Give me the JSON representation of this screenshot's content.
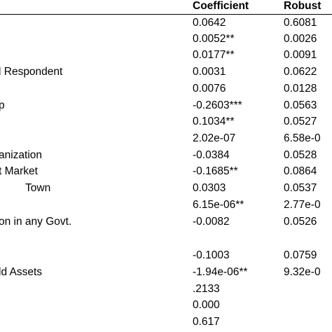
{
  "table": {
    "header": [
      "Coefficient",
      "Robust"
    ],
    "rows": [
      {
        "coefficient": "0.0642",
        "robust": "0.6081"
      },
      {
        "coefficient": "0.0052**",
        "robust": "0.0026"
      },
      {
        "coefficient": "0.0177**",
        "robust": "0.0091"
      },
      {
        "label": "l Respondent",
        "coefficient": "0.0031",
        "robust": "0.0622"
      },
      {
        "coefficient": "0.0076",
        "robust": "0.0128"
      },
      {
        "label": "p",
        "coefficient": "-0.2603***",
        "robust": "0.0563"
      },
      {
        "coefficient": "0.1034**",
        "robust": "0.0527"
      },
      {
        "coefficient": "2.02e-07",
        "robust": "6.58e-0"
      },
      {
        "label": "anization",
        "coefficient": "-0.0384",
        "robust": "0.0528"
      },
      {
        "label": "t Market",
        "coefficient": "-0.1685**",
        "robust": "0.0864"
      },
      {
        "label": "Town",
        "coefficient": "0.0303",
        "robust": "0.0537"
      },
      {
        "coefficient": "6.15e-06**",
        "robust": "2.77e-0"
      },
      {
        "label": "on in any Govt.",
        "coefficient": "-0.0082",
        "robust": "0.0526"
      },
      {
        "coefficient": "-0.1003",
        "robust": "0.0759"
      },
      {
        "label": "ld Assets",
        "coefficient": "-1.94e-06**",
        "robust": "9.32e-0"
      },
      {
        "coefficient": ".2133"
      },
      {
        "coefficient": "0.000"
      },
      {
        "coefficient": "0.617"
      }
    ]
  }
}
